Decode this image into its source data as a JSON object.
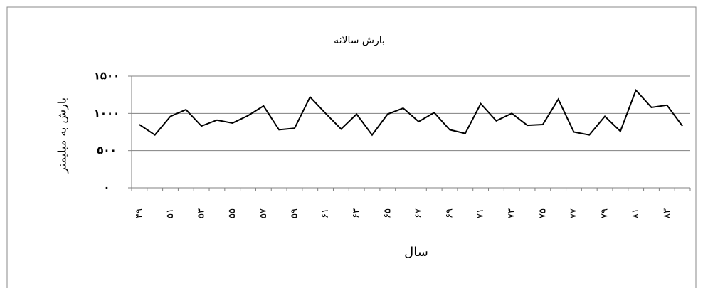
{
  "chart_data": {
    "type": "line",
    "title": "بارش سالانه",
    "x_label": "سال",
    "y_label": "بارش به میلیمتر",
    "categories": [
      "۴۹",
      null,
      "۵۱",
      null,
      "۵۳",
      null,
      "۵۵",
      null,
      "۵۷",
      null,
      "۵۹",
      null,
      "۶۱",
      null,
      "۶۳",
      null,
      "۶۵",
      null,
      "۶۷",
      null,
      "۶۹",
      null,
      "۷۱",
      null,
      "۷۳",
      null,
      "۷۵",
      null,
      "۷۷",
      null,
      "۷۹",
      null,
      "۸۱",
      null,
      "۸۳",
      null
    ],
    "values": [
      850,
      710,
      960,
      1050,
      830,
      910,
      870,
      970,
      1100,
      780,
      800,
      1220,
      1000,
      790,
      990,
      710,
      990,
      1070,
      890,
      1010,
      780,
      730,
      1130,
      900,
      1000,
      840,
      850,
      1190,
      750,
      710,
      960,
      760,
      1310,
      1080,
      1110,
      830
    ],
    "color": "#000000",
    "ylim": [
      0,
      1500
    ],
    "yticks": [
      {
        "value": 0,
        "label": "۰"
      },
      {
        "value": 500,
        "label": "۵۰۰"
      },
      {
        "value": 1000,
        "label": "۱۰۰۰"
      },
      {
        "value": 1500,
        "label": "۱۵۰۰"
      }
    ],
    "grid": true
  }
}
